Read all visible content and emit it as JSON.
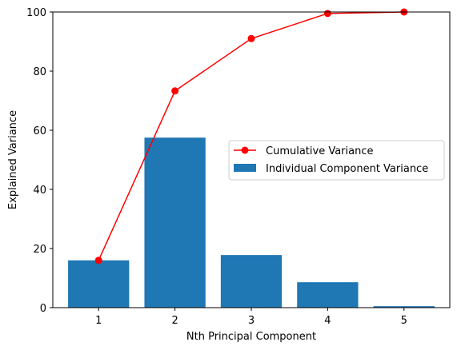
{
  "chart_data": {
    "type": "bar",
    "categories": [
      "1",
      "2",
      "3",
      "4",
      "5"
    ],
    "series": [
      {
        "name": "Individual Component Variance",
        "type": "bar",
        "color": "#1f77b4",
        "values": [
          16.0,
          57.5,
          17.8,
          8.6,
          0.5
        ]
      },
      {
        "name": "Cumulative Variance",
        "type": "line",
        "color": "#ff0000",
        "marker": "circle",
        "values": [
          16.0,
          73.3,
          91.0,
          99.5,
          100.0
        ]
      }
    ],
    "xlabel": "Nth Principal Component",
    "ylabel": "Explained Variance",
    "ylim": [
      0,
      100
    ],
    "yticks": [
      "0",
      "20",
      "40",
      "60",
      "80",
      "100"
    ],
    "xlim": [
      0.4,
      5.6
    ],
    "grid": false,
    "legend_placement": "center-right"
  }
}
